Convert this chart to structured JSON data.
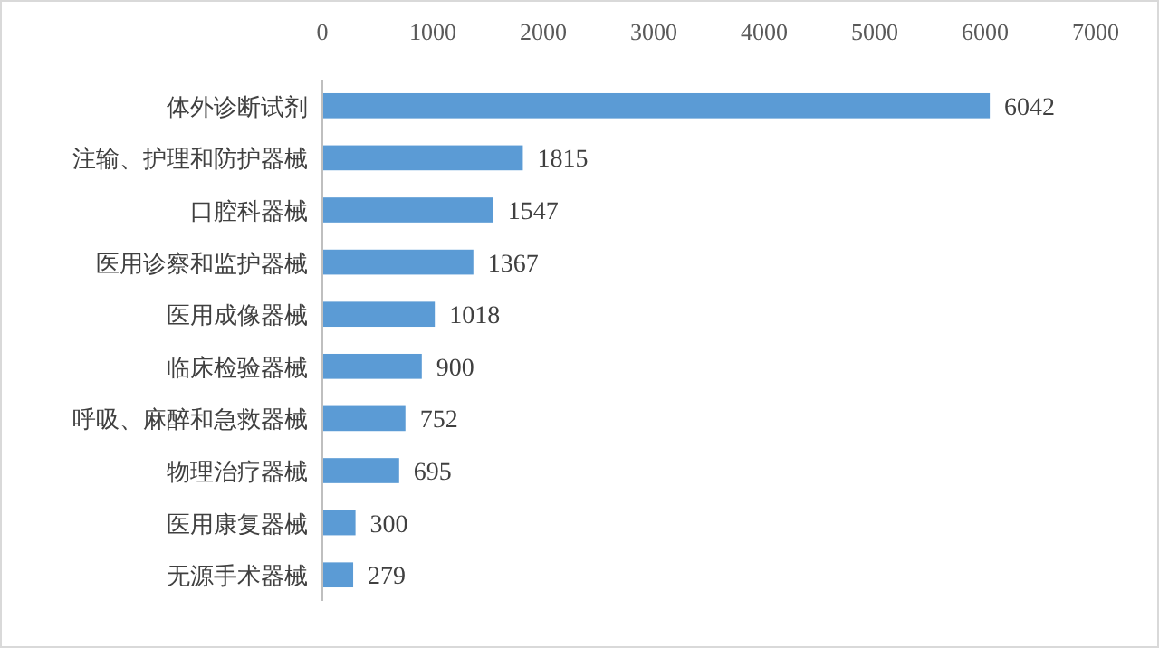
{
  "chart_data": {
    "type": "bar",
    "orientation": "horizontal",
    "categories": [
      "体外诊断试剂",
      "注输、护理和防护器械",
      "口腔科器械",
      "医用诊察和监护器械",
      "医用成像器械",
      "临床检验器械",
      "呼吸、麻醉和急救器械",
      "物理治疗器械",
      "医用康复器械",
      "无源手术器械"
    ],
    "values": [
      6042,
      1815,
      1547,
      1367,
      1018,
      900,
      752,
      695,
      300,
      279
    ],
    "color": "#5b9bd5",
    "xlim": [
      0,
      7000
    ],
    "xticks": [
      0,
      1000,
      2000,
      3000,
      4000,
      5000,
      6000,
      7000
    ],
    "data_labels": true
  }
}
